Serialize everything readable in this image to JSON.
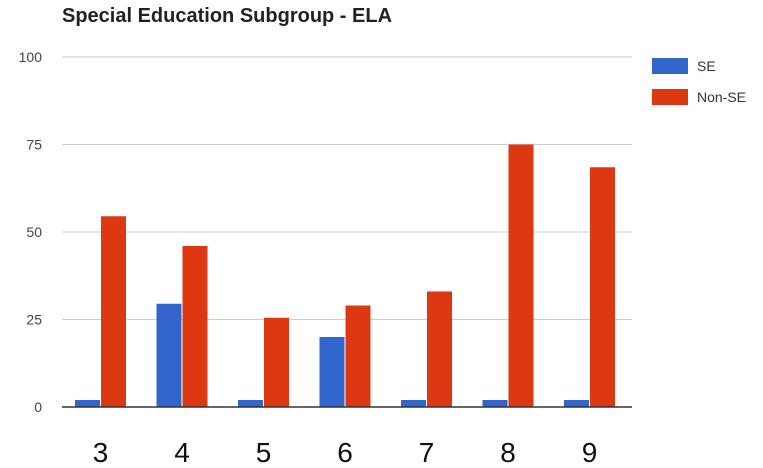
{
  "chart_data": {
    "type": "bar",
    "title": "Special Education Subgroup - ELA",
    "xlabel": "",
    "ylabel": "",
    "categories": [
      "3",
      "4",
      "5",
      "6",
      "7",
      "8",
      "9"
    ],
    "series": [
      {
        "name": "SE",
        "color": "#3366cc",
        "values": [
          2,
          29.5,
          2,
          20,
          2,
          2,
          2
        ]
      },
      {
        "name": "Non-SE",
        "color": "#dc3912",
        "values": [
          54.5,
          46,
          25.5,
          29,
          33,
          75,
          68.5
        ]
      }
    ],
    "ylim": [
      0,
      100
    ],
    "yticks": [
      0,
      25,
      50,
      75,
      100
    ],
    "grid": true,
    "legend_position": "right"
  }
}
